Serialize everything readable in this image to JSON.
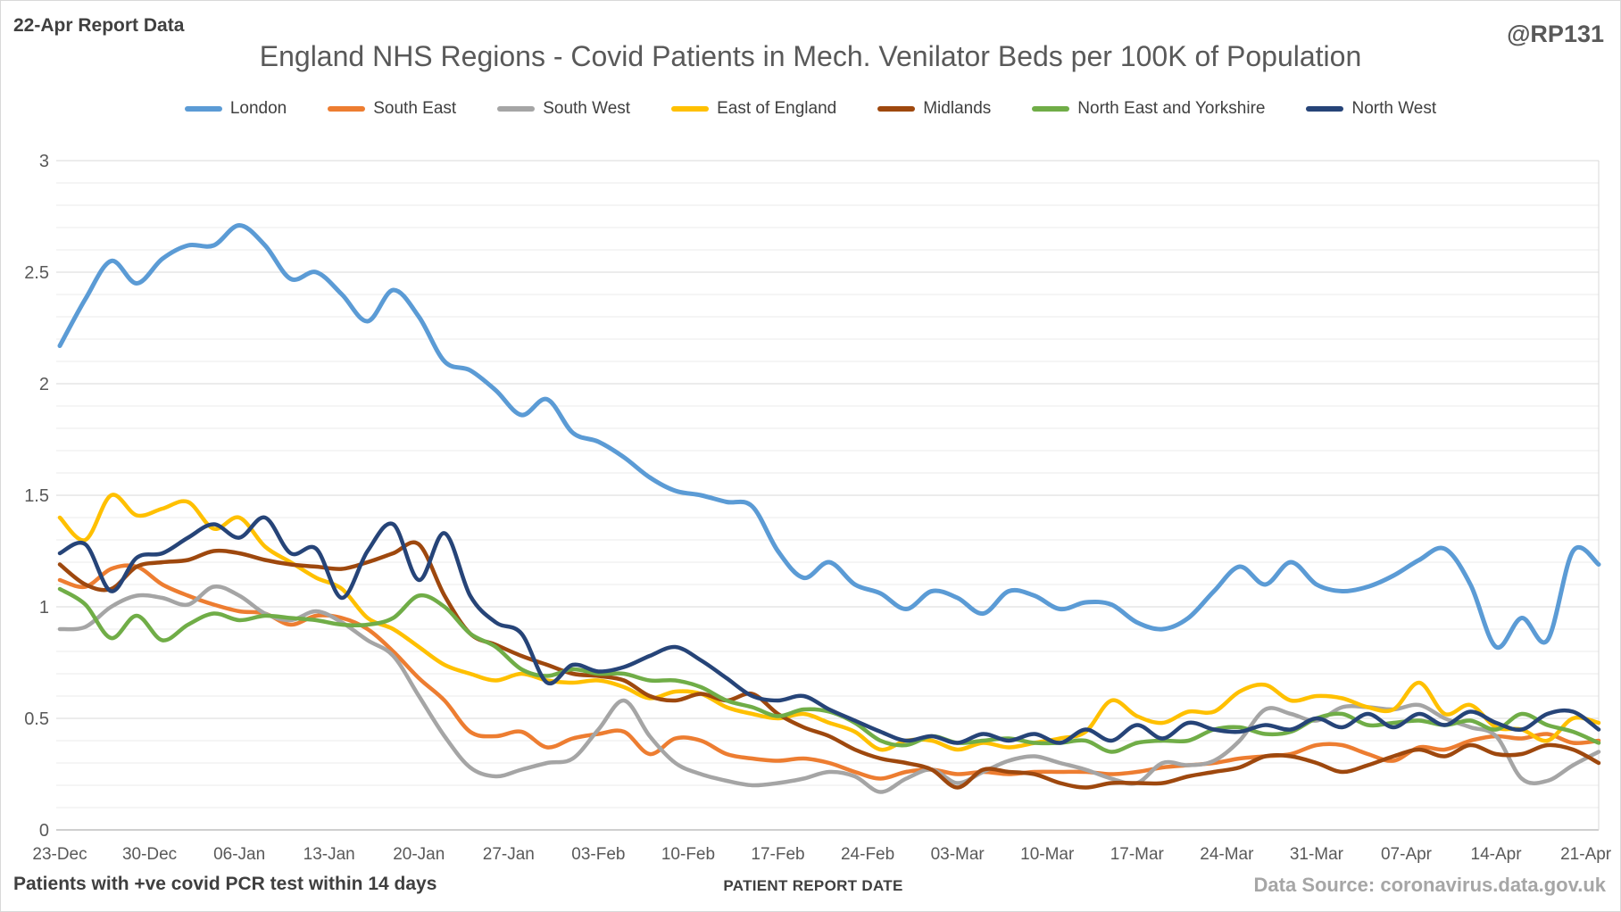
{
  "header": {
    "report_label": "22-Apr Report Data",
    "handle": "@RP131"
  },
  "title": "England NHS Regions - Covid Patients in Mech. Venilator Beds per 100K of Population",
  "footer": {
    "left": "Patients with +ve covid PCR test within 14 days",
    "center": "PATIENT REPORT DATE",
    "right": "Data Source: coronavirus.data.gov.uk"
  },
  "chart_data": {
    "type": "line",
    "title": "England NHS Regions - Covid Patients in Mech. Venilator Beds per 100K of Population",
    "xlabel": "PATIENT REPORT DATE",
    "ylabel": "Patients with +ve covid PCR test within 14 days",
    "ylim": [
      0,
      3
    ],
    "grid": "horizontal, minor every 0.1, light gray",
    "legend_position": "top",
    "x_start_day": 0,
    "x_day_step": 2,
    "x": [
      "23-Dec",
      "25-Dec",
      "27-Dec",
      "29-Dec",
      "31-Dec",
      "02-Jan",
      "04-Jan",
      "06-Jan",
      "08-Jan",
      "10-Jan",
      "12-Jan",
      "14-Jan",
      "16-Jan",
      "18-Jan",
      "20-Jan",
      "22-Jan",
      "24-Jan",
      "26-Jan",
      "28-Jan",
      "30-Jan",
      "01-Feb",
      "03-Feb",
      "05-Feb",
      "07-Feb",
      "09-Feb",
      "11-Feb",
      "13-Feb",
      "15-Feb",
      "17-Feb",
      "19-Feb",
      "21-Feb",
      "23-Feb",
      "25-Feb",
      "27-Feb",
      "01-Mar",
      "03-Mar",
      "05-Mar",
      "07-Mar",
      "09-Mar",
      "11-Mar",
      "13-Mar",
      "15-Mar",
      "17-Mar",
      "19-Mar",
      "21-Mar",
      "23-Mar",
      "25-Mar",
      "27-Mar",
      "29-Mar",
      "31-Mar",
      "02-Apr",
      "04-Apr",
      "06-Apr",
      "08-Apr",
      "10-Apr",
      "12-Apr",
      "14-Apr",
      "16-Apr",
      "18-Apr",
      "20-Apr",
      "22-Apr"
    ],
    "x_ticks": [
      {
        "label": "23-Dec",
        "day": 0
      },
      {
        "label": "30-Dec",
        "day": 7
      },
      {
        "label": "06-Jan",
        "day": 14
      },
      {
        "label": "13-Jan",
        "day": 21
      },
      {
        "label": "20-Jan",
        "day": 28
      },
      {
        "label": "27-Jan",
        "day": 35
      },
      {
        "label": "03-Feb",
        "day": 42
      },
      {
        "label": "10-Feb",
        "day": 49
      },
      {
        "label": "17-Feb",
        "day": 56
      },
      {
        "label": "24-Feb",
        "day": 63
      },
      {
        "label": "03-Mar",
        "day": 70
      },
      {
        "label": "10-Mar",
        "day": 77
      },
      {
        "label": "17-Mar",
        "day": 84
      },
      {
        "label": "24-Mar",
        "day": 91
      },
      {
        "label": "31-Mar",
        "day": 98
      },
      {
        "label": "07-Apr",
        "day": 105
      },
      {
        "label": "14-Apr",
        "day": 112
      },
      {
        "label": "21-Apr",
        "day": 119
      }
    ],
    "y_ticks": [
      {
        "label": "0",
        "value": 0
      },
      {
        "label": "0.5",
        "value": 0.5
      },
      {
        "label": "1",
        "value": 1
      },
      {
        "label": "1.5",
        "value": 1.5
      },
      {
        "label": "2",
        "value": 2
      },
      {
        "label": "2.5",
        "value": 2.5
      },
      {
        "label": "3",
        "value": 3
      }
    ],
    "series": [
      {
        "name": "London",
        "color": "#5B9BD5",
        "width": 5,
        "values": [
          2.17,
          2.38,
          2.55,
          2.45,
          2.56,
          2.62,
          2.62,
          2.71,
          2.62,
          2.47,
          2.5,
          2.4,
          2.28,
          2.42,
          2.3,
          2.1,
          2.06,
          1.97,
          1.86,
          1.93,
          1.78,
          1.74,
          1.67,
          1.58,
          1.52,
          1.5,
          1.47,
          1.45,
          1.25,
          1.13,
          1.2,
          1.1,
          1.06,
          0.99,
          1.07,
          1.04,
          0.97,
          1.07,
          1.05,
          0.99,
          1.02,
          1.01,
          0.93,
          0.9,
          0.95,
          1.07,
          1.18,
          1.1,
          1.2,
          1.1,
          1.07,
          1.09,
          1.14,
          1.21,
          1.26,
          1.1,
          0.82,
          0.95,
          0.85,
          1.25,
          1.19
        ]
      },
      {
        "name": "South East",
        "color": "#ED7D31",
        "width": 4.5,
        "values": [
          1.12,
          1.09,
          1.17,
          1.18,
          1.1,
          1.05,
          1.01,
          0.98,
          0.97,
          0.92,
          0.96,
          0.95,
          0.9,
          0.8,
          0.68,
          0.58,
          0.44,
          0.42,
          0.44,
          0.37,
          0.41,
          0.43,
          0.44,
          0.34,
          0.41,
          0.4,
          0.34,
          0.32,
          0.31,
          0.32,
          0.3,
          0.26,
          0.23,
          0.26,
          0.27,
          0.25,
          0.26,
          0.25,
          0.26,
          0.26,
          0.26,
          0.25,
          0.26,
          0.28,
          0.29,
          0.3,
          0.32,
          0.33,
          0.34,
          0.38,
          0.38,
          0.34,
          0.31,
          0.37,
          0.36,
          0.4,
          0.42,
          0.41,
          0.43,
          0.39,
          0.4
        ]
      },
      {
        "name": "South West",
        "color": "#A5A5A5",
        "width": 4.5,
        "values": [
          0.9,
          0.91,
          1.0,
          1.05,
          1.04,
          1.01,
          1.09,
          1.05,
          0.97,
          0.94,
          0.98,
          0.93,
          0.85,
          0.78,
          0.6,
          0.42,
          0.28,
          0.24,
          0.27,
          0.3,
          0.32,
          0.45,
          0.58,
          0.42,
          0.3,
          0.25,
          0.22,
          0.2,
          0.21,
          0.23,
          0.26,
          0.24,
          0.17,
          0.23,
          0.27,
          0.21,
          0.26,
          0.31,
          0.33,
          0.3,
          0.27,
          0.23,
          0.21,
          0.3,
          0.29,
          0.31,
          0.4,
          0.54,
          0.52,
          0.49,
          0.55,
          0.55,
          0.54,
          0.56,
          0.5,
          0.46,
          0.42,
          0.23,
          0.22,
          0.29,
          0.35
        ]
      },
      {
        "name": "East of England",
        "color": "#FFC000",
        "width": 4.5,
        "values": [
          1.4,
          1.3,
          1.5,
          1.41,
          1.44,
          1.47,
          1.35,
          1.4,
          1.27,
          1.2,
          1.13,
          1.08,
          0.95,
          0.9,
          0.82,
          0.74,
          0.7,
          0.67,
          0.7,
          0.67,
          0.66,
          0.67,
          0.64,
          0.59,
          0.62,
          0.61,
          0.55,
          0.52,
          0.5,
          0.52,
          0.48,
          0.44,
          0.36,
          0.4,
          0.4,
          0.36,
          0.39,
          0.37,
          0.39,
          0.41,
          0.44,
          0.58,
          0.51,
          0.48,
          0.53,
          0.53,
          0.62,
          0.65,
          0.58,
          0.6,
          0.59,
          0.55,
          0.54,
          0.66,
          0.52,
          0.56,
          0.46,
          0.45,
          0.4,
          0.5,
          0.48
        ]
      },
      {
        "name": "Midlands",
        "color": "#9E480E",
        "width": 4.5,
        "values": [
          1.19,
          1.1,
          1.08,
          1.18,
          1.2,
          1.21,
          1.25,
          1.24,
          1.21,
          1.19,
          1.18,
          1.17,
          1.2,
          1.24,
          1.28,
          1.05,
          0.88,
          0.83,
          0.78,
          0.74,
          0.7,
          0.69,
          0.67,
          0.6,
          0.58,
          0.61,
          0.58,
          0.61,
          0.52,
          0.46,
          0.42,
          0.36,
          0.32,
          0.3,
          0.27,
          0.19,
          0.27,
          0.26,
          0.25,
          0.21,
          0.19,
          0.21,
          0.21,
          0.21,
          0.24,
          0.26,
          0.28,
          0.33,
          0.33,
          0.3,
          0.26,
          0.29,
          0.33,
          0.36,
          0.33,
          0.38,
          0.34,
          0.34,
          0.38,
          0.36,
          0.3
        ]
      },
      {
        "name": "North East and Yorkshire",
        "color": "#70AD47",
        "width": 4.5,
        "values": [
          1.08,
          1.01,
          0.86,
          0.96,
          0.85,
          0.92,
          0.97,
          0.94,
          0.96,
          0.95,
          0.94,
          0.92,
          0.92,
          0.95,
          1.05,
          1.0,
          0.88,
          0.82,
          0.72,
          0.69,
          0.72,
          0.7,
          0.7,
          0.67,
          0.67,
          0.64,
          0.58,
          0.55,
          0.51,
          0.54,
          0.53,
          0.48,
          0.4,
          0.38,
          0.42,
          0.39,
          0.4,
          0.41,
          0.39,
          0.39,
          0.4,
          0.35,
          0.39,
          0.4,
          0.4,
          0.45,
          0.46,
          0.43,
          0.44,
          0.5,
          0.52,
          0.47,
          0.48,
          0.49,
          0.47,
          0.49,
          0.45,
          0.52,
          0.47,
          0.44,
          0.39
        ]
      },
      {
        "name": "North West",
        "color": "#264478",
        "width": 4.5,
        "values": [
          1.24,
          1.28,
          1.07,
          1.22,
          1.24,
          1.31,
          1.37,
          1.31,
          1.4,
          1.24,
          1.26,
          1.04,
          1.25,
          1.37,
          1.12,
          1.33,
          1.05,
          0.93,
          0.88,
          0.66,
          0.74,
          0.71,
          0.73,
          0.78,
          0.82,
          0.76,
          0.68,
          0.6,
          0.58,
          0.6,
          0.54,
          0.49,
          0.44,
          0.4,
          0.42,
          0.39,
          0.43,
          0.4,
          0.43,
          0.39,
          0.45,
          0.4,
          0.47,
          0.41,
          0.48,
          0.45,
          0.44,
          0.47,
          0.45,
          0.5,
          0.46,
          0.52,
          0.46,
          0.52,
          0.47,
          0.53,
          0.48,
          0.45,
          0.52,
          0.53,
          0.45
        ]
      }
    ]
  },
  "style": {
    "minor_grid_color": "#ebebeb",
    "major_grid_color": "#d9d9d9",
    "axis_line_color": "#bfbfbf",
    "plot_border_color": "#d9d9d9"
  }
}
